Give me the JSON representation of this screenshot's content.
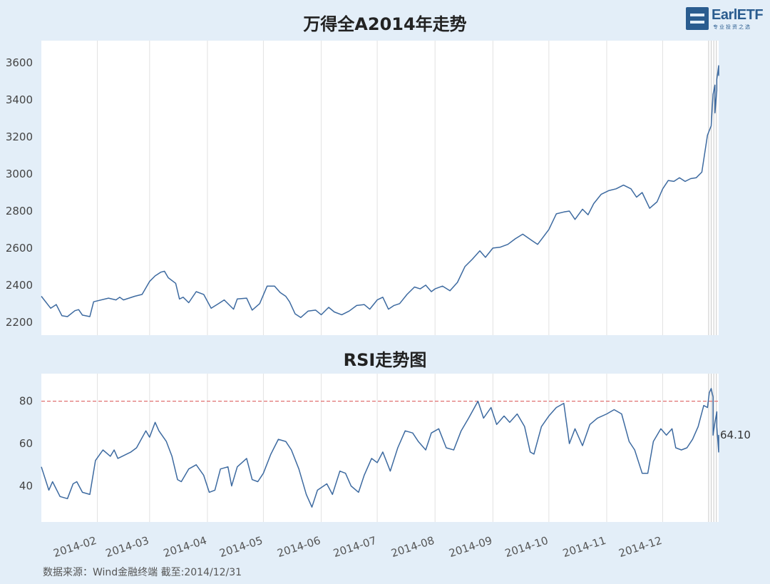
{
  "logo": {
    "text": "EarlETF",
    "subtitle": "专业投资之选"
  },
  "source": "数据来源：Wind金融终端 截至:2014/12/31",
  "chart_data": [
    {
      "type": "line",
      "title": "万得全A2014年走势",
      "xlabel": "",
      "ylabel": "",
      "x_ticks": [
        "2014-02",
        "2014-03",
        "2014-04",
        "2014-05",
        "2014-06",
        "2014-07",
        "2014-08",
        "2014-09",
        "2014-10",
        "2014-11",
        "2014-12"
      ],
      "y_ticks": [
        2200,
        2400,
        2600,
        2800,
        3000,
        3200,
        3400,
        3600
      ],
      "ylim": [
        2130,
        3720
      ],
      "xlim": [
        "2014-01-02",
        "2014-12-31"
      ],
      "grid": "vertical",
      "series": [
        {
          "color": "#3d6aa0",
          "points": [
            [
              "2014-01-02",
              2340
            ],
            [
              "2014-01-07",
              2275
            ],
            [
              "2014-01-10",
              2295
            ],
            [
              "2014-01-13",
              2235
            ],
            [
              "2014-01-16",
              2230
            ],
            [
              "2014-01-20",
              2262
            ],
            [
              "2014-01-22",
              2268
            ],
            [
              "2014-01-24",
              2238
            ],
            [
              "2014-01-28",
              2230
            ],
            [
              "2014-01-30",
              2310
            ],
            [
              "2014-02-07",
              2330
            ],
            [
              "2014-02-11",
              2320
            ],
            [
              "2014-02-13",
              2335
            ],
            [
              "2014-02-15",
              2320
            ],
            [
              "2014-02-21",
              2340
            ],
            [
              "2014-02-25",
              2350
            ],
            [
              "2014-03-01",
              2420
            ],
            [
              "2014-03-04",
              2450
            ],
            [
              "2014-03-07",
              2470
            ],
            [
              "2014-03-09",
              2475
            ],
            [
              "2014-03-11",
              2440
            ],
            [
              "2014-03-15",
              2410
            ],
            [
              "2014-03-17",
              2325
            ],
            [
              "2014-03-19",
              2335
            ],
            [
              "2014-03-22",
              2305
            ],
            [
              "2014-03-26",
              2365
            ],
            [
              "2014-03-30",
              2350
            ],
            [
              "2014-04-03",
              2275
            ],
            [
              "2014-04-07",
              2300
            ],
            [
              "2014-04-10",
              2320
            ],
            [
              "2014-04-15",
              2270
            ],
            [
              "2014-04-17",
              2325
            ],
            [
              "2014-04-22",
              2330
            ],
            [
              "2014-04-25",
              2265
            ],
            [
              "2014-04-29",
              2300
            ],
            [
              "2014-05-03",
              2395
            ],
            [
              "2014-05-07",
              2395
            ],
            [
              "2014-05-10",
              2360
            ],
            [
              "2014-05-13",
              2340
            ],
            [
              "2014-05-15",
              2310
            ],
            [
              "2014-05-18",
              2245
            ],
            [
              "2014-05-21",
              2225
            ],
            [
              "2014-05-25",
              2260
            ],
            [
              "2014-05-29",
              2265
            ],
            [
              "2014-06-01",
              2240
            ],
            [
              "2014-06-05",
              2280
            ],
            [
              "2014-06-08",
              2255
            ],
            [
              "2014-06-12",
              2240
            ],
            [
              "2014-06-16",
              2260
            ],
            [
              "2014-06-20",
              2290
            ],
            [
              "2014-06-24",
              2295
            ],
            [
              "2014-06-27",
              2270
            ],
            [
              "2014-07-01",
              2320
            ],
            [
              "2014-07-04",
              2335
            ],
            [
              "2014-07-07",
              2270
            ],
            [
              "2014-07-10",
              2290
            ],
            [
              "2014-07-13",
              2300
            ],
            [
              "2014-07-17",
              2350
            ],
            [
              "2014-07-21",
              2390
            ],
            [
              "2014-07-24",
              2380
            ],
            [
              "2014-07-27",
              2400
            ],
            [
              "2014-07-30",
              2365
            ],
            [
              "2014-08-01",
              2380
            ],
            [
              "2014-08-05",
              2395
            ],
            [
              "2014-08-09",
              2370
            ],
            [
              "2014-08-13",
              2415
            ],
            [
              "2014-08-17",
              2500
            ],
            [
              "2014-08-21",
              2540
            ],
            [
              "2014-08-25",
              2585
            ],
            [
              "2014-08-28",
              2550
            ],
            [
              "2014-09-01",
              2600
            ],
            [
              "2014-09-05",
              2605
            ],
            [
              "2014-09-09",
              2620
            ],
            [
              "2014-09-13",
              2650
            ],
            [
              "2014-09-17",
              2675
            ],
            [
              "2014-09-22",
              2640
            ],
            [
              "2014-09-25",
              2620
            ],
            [
              "2014-09-28",
              2660
            ],
            [
              "2014-10-01",
              2700
            ],
            [
              "2014-10-05",
              2785
            ],
            [
              "2014-10-09",
              2795
            ],
            [
              "2014-10-12",
              2800
            ],
            [
              "2014-10-15",
              2755
            ],
            [
              "2014-10-19",
              2810
            ],
            [
              "2014-10-22",
              2780
            ],
            [
              "2014-10-25",
              2840
            ],
            [
              "2014-10-29",
              2890
            ],
            [
              "2014-11-02",
              2910
            ],
            [
              "2014-11-06",
              2920
            ],
            [
              "2014-11-10",
              2940
            ],
            [
              "2014-11-14",
              2920
            ],
            [
              "2014-11-17",
              2875
            ],
            [
              "2014-11-20",
              2900
            ],
            [
              "2014-11-24",
              2815
            ],
            [
              "2014-11-28",
              2850
            ],
            [
              "2014-12-01",
              2920
            ],
            [
              "2014-12-04",
              2965
            ],
            [
              "2014-12-07",
              2960
            ],
            [
              "2014-12-10",
              2980
            ],
            [
              "2014-12-13",
              2960
            ],
            [
              "2014-12-16",
              2975
            ],
            [
              "2014-12-19",
              2980
            ],
            [
              "2014-12-22",
              3010
            ],
            [
              "2014-12-25",
              3210
            ],
            [
              "2014-12-27",
              3260
            ],
            [
              "2014-12-28",
              3430
            ],
            [
              "2014-12-29",
              3480
            ],
            [
              "2014-12-29",
              3330
            ],
            [
              "2014-12-30",
              3450
            ],
            [
              "2014-12-30",
              3510
            ],
            [
              "2014-12-31",
              3585
            ],
            [
              "2014-12-31",
              3530
            ]
          ]
        }
      ]
    },
    {
      "type": "line",
      "title": "RSI走势图",
      "xlabel": "",
      "ylabel": "",
      "x_ticks": [
        "2014-02",
        "2014-03",
        "2014-04",
        "2014-05",
        "2014-06",
        "2014-07",
        "2014-08",
        "2014-09",
        "2014-10",
        "2014-11",
        "2014-12"
      ],
      "y_ticks": [
        40,
        60,
        80
      ],
      "ylim": [
        23,
        93
      ],
      "xlim": [
        "2014-01-02",
        "2014-12-31"
      ],
      "grid": "vertical",
      "reference_line": {
        "value": 80,
        "style": "dashed",
        "color": "#e07070"
      },
      "last_label": "64.10",
      "series": [
        {
          "color": "#3d6aa0",
          "points": [
            [
              "2014-01-02",
              49
            ],
            [
              "2014-01-06",
              38
            ],
            [
              "2014-01-08",
              42
            ],
            [
              "2014-01-12",
              35
            ],
            [
              "2014-01-16",
              34
            ],
            [
              "2014-01-19",
              41
            ],
            [
              "2014-01-21",
              42
            ],
            [
              "2014-01-24",
              37
            ],
            [
              "2014-01-28",
              36
            ],
            [
              "2014-01-31",
              52
            ],
            [
              "2014-02-04",
              57
            ],
            [
              "2014-02-08",
              54
            ],
            [
              "2014-02-10",
              57
            ],
            [
              "2014-02-12",
              53
            ],
            [
              "2014-02-19",
              56
            ],
            [
              "2014-02-22",
              58
            ],
            [
              "2014-02-27",
              66
            ],
            [
              "2014-03-01",
              63
            ],
            [
              "2014-03-04",
              70
            ],
            [
              "2014-03-06",
              66
            ],
            [
              "2014-03-10",
              61
            ],
            [
              "2014-03-13",
              54
            ],
            [
              "2014-03-16",
              43
            ],
            [
              "2014-03-18",
              42
            ],
            [
              "2014-03-22",
              48
            ],
            [
              "2014-03-26",
              50
            ],
            [
              "2014-03-30",
              45
            ],
            [
              "2014-04-02",
              37
            ],
            [
              "2014-04-05",
              38
            ],
            [
              "2014-04-08",
              48
            ],
            [
              "2014-04-12",
              49
            ],
            [
              "2014-04-14",
              40
            ],
            [
              "2014-04-17",
              49
            ],
            [
              "2014-04-22",
              53
            ],
            [
              "2014-04-25",
              43
            ],
            [
              "2014-04-28",
              42
            ],
            [
              "2014-05-01",
              46
            ],
            [
              "2014-05-05",
              55
            ],
            [
              "2014-05-09",
              62
            ],
            [
              "2014-05-13",
              61
            ],
            [
              "2014-05-16",
              57
            ],
            [
              "2014-05-20",
              48
            ],
            [
              "2014-05-24",
              36
            ],
            [
              "2014-05-27",
              30
            ],
            [
              "2014-05-30",
              38
            ],
            [
              "2014-06-04",
              41
            ],
            [
              "2014-06-07",
              36
            ],
            [
              "2014-06-11",
              47
            ],
            [
              "2014-06-14",
              46
            ],
            [
              "2014-06-17",
              40
            ],
            [
              "2014-06-21",
              37
            ],
            [
              "2014-06-24",
              45
            ],
            [
              "2014-06-28",
              53
            ],
            [
              "2014-07-01",
              51
            ],
            [
              "2014-07-04",
              56
            ],
            [
              "2014-07-08",
              47
            ],
            [
              "2014-07-12",
              58
            ],
            [
              "2014-07-16",
              66
            ],
            [
              "2014-07-20",
              65
            ],
            [
              "2014-07-23",
              61
            ],
            [
              "2014-07-27",
              57
            ],
            [
              "2014-07-30",
              65
            ],
            [
              "2014-08-03",
              67
            ],
            [
              "2014-08-07",
              58
            ],
            [
              "2014-08-11",
              57
            ],
            [
              "2014-08-15",
              66
            ],
            [
              "2014-08-19",
              72
            ],
            [
              "2014-08-24",
              80
            ],
            [
              "2014-08-27",
              72
            ],
            [
              "2014-08-31",
              77
            ],
            [
              "2014-09-03",
              69
            ],
            [
              "2014-09-07",
              73
            ],
            [
              "2014-09-10",
              70
            ],
            [
              "2014-09-14",
              74
            ],
            [
              "2014-09-18",
              68
            ],
            [
              "2014-09-21",
              56
            ],
            [
              "2014-09-23",
              55
            ],
            [
              "2014-09-27",
              68
            ],
            [
              "2014-10-01",
              73
            ],
            [
              "2014-10-05",
              77
            ],
            [
              "2014-10-09",
              79
            ],
            [
              "2014-10-12",
              60
            ],
            [
              "2014-10-15",
              67
            ],
            [
              "2014-10-19",
              59
            ],
            [
              "2014-10-23",
              69
            ],
            [
              "2014-10-27",
              72
            ],
            [
              "2014-11-01",
              74
            ],
            [
              "2014-11-05",
              76
            ],
            [
              "2014-11-09",
              74
            ],
            [
              "2014-11-13",
              61
            ],
            [
              "2014-11-16",
              57
            ],
            [
              "2014-11-20",
              46
            ],
            [
              "2014-11-23",
              46
            ],
            [
              "2014-11-26",
              61
            ],
            [
              "2014-11-30",
              67
            ],
            [
              "2014-12-03",
              64
            ],
            [
              "2014-12-06",
              67
            ],
            [
              "2014-12-08",
              58
            ],
            [
              "2014-12-11",
              57
            ],
            [
              "2014-12-14",
              58
            ],
            [
              "2014-12-17",
              62
            ],
            [
              "2014-12-20",
              68
            ],
            [
              "2014-12-23",
              78
            ],
            [
              "2014-12-25",
              77
            ],
            [
              "2014-12-26",
              84
            ],
            [
              "2014-12-27",
              86
            ],
            [
              "2014-12-28",
              82
            ],
            [
              "2014-12-28",
              64
            ],
            [
              "2014-12-29",
              70
            ],
            [
              "2014-12-30",
              75
            ],
            [
              "2014-12-30",
              68
            ],
            [
              "2014-12-31",
              56
            ],
            [
              "2014-12-31",
              64.1
            ]
          ]
        }
      ]
    }
  ]
}
